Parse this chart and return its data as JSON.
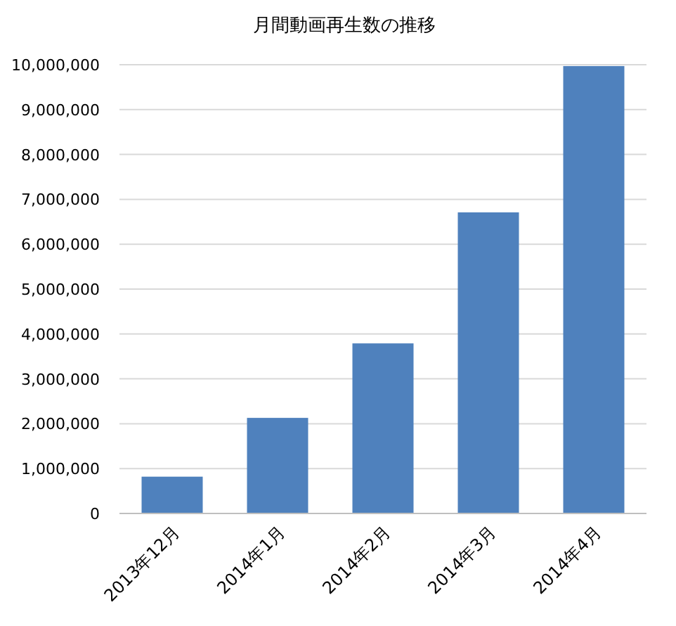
{
  "chart_data": {
    "type": "bar",
    "title": "月間動画再生数の推移",
    "categories": [
      "2013年12月",
      "2014年1月",
      "2014年2月",
      "2014年3月",
      "2014年4月"
    ],
    "values": [
      820000,
      2130000,
      3790000,
      6710000,
      9970000
    ],
    "color": "#4f81bd",
    "ylim": [
      0,
      10000000
    ],
    "yticks": [
      {
        "value": 0,
        "label": "0"
      },
      {
        "value": 1000000,
        "label": "1,000,000"
      },
      {
        "value": 2000000,
        "label": "2,000,000"
      },
      {
        "value": 3000000,
        "label": "3,000,000"
      },
      {
        "value": 4000000,
        "label": "4,000,000"
      },
      {
        "value": 5000000,
        "label": "5,000,000"
      },
      {
        "value": 6000000,
        "label": "6,000,000"
      },
      {
        "value": 7000000,
        "label": "7,000,000"
      },
      {
        "value": 8000000,
        "label": "8,000,000"
      },
      {
        "value": 9000000,
        "label": "9,000,000"
      },
      {
        "value": 10000000,
        "label": "10,000,000"
      }
    ],
    "grid": "y"
  }
}
